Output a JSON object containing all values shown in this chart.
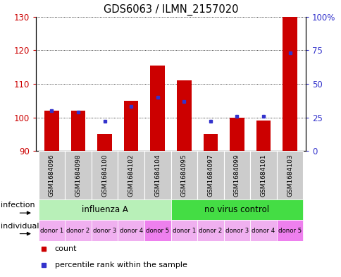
{
  "title": "GDS6063 / ILMN_2157020",
  "samples": [
    "GSM1684096",
    "GSM1684098",
    "GSM1684100",
    "GSM1684102",
    "GSM1684104",
    "GSM1684095",
    "GSM1684097",
    "GSM1684099",
    "GSM1684101",
    "GSM1684103"
  ],
  "count_values": [
    102,
    102,
    95,
    105,
    115.5,
    111,
    95,
    100,
    99,
    130
  ],
  "percentile_values": [
    30,
    29,
    22,
    33,
    40,
    37,
    22,
    26,
    26,
    73
  ],
  "ylim_left": [
    90,
    130
  ],
  "ylim_right": [
    0,
    100
  ],
  "yticks_left": [
    90,
    100,
    110,
    120,
    130
  ],
  "yticks_right": [
    0,
    25,
    50,
    75,
    100
  ],
  "ytick_labels_left": [
    "90",
    "100",
    "110",
    "120",
    "130"
  ],
  "ytick_labels_right": [
    "0",
    "25",
    "50",
    "75",
    "100%"
  ],
  "bar_color": "#cc0000",
  "dot_color": "#3333cc",
  "bar_bottom": 90,
  "infection_groups": [
    {
      "label": "influenza A",
      "start": 0,
      "end": 5,
      "color": "#b8f0b8"
    },
    {
      "label": "no virus control",
      "start": 5,
      "end": 10,
      "color": "#44dd44"
    }
  ],
  "individual_labels": [
    "donor 1",
    "donor 2",
    "donor 3",
    "donor 4",
    "donor 5",
    "donor 1",
    "donor 2",
    "donor 3",
    "donor 4",
    "donor 5"
  ],
  "individual_colors": [
    "#f0b0f0",
    "#f0b0f0",
    "#f0b0f0",
    "#f0b0f0",
    "#ee80ee",
    "#f0b0f0",
    "#f0b0f0",
    "#f0b0f0",
    "#f0b0f0",
    "#ee80ee"
  ],
  "infection_label": "infection",
  "individual_label": "individual",
  "legend_count_label": "count",
  "legend_percentile_label": "percentile rank within the sample",
  "axis_label_color_left": "#cc0000",
  "axis_label_color_right": "#3333cc",
  "sample_bg_color": "#cccccc",
  "border_color": "#888888"
}
